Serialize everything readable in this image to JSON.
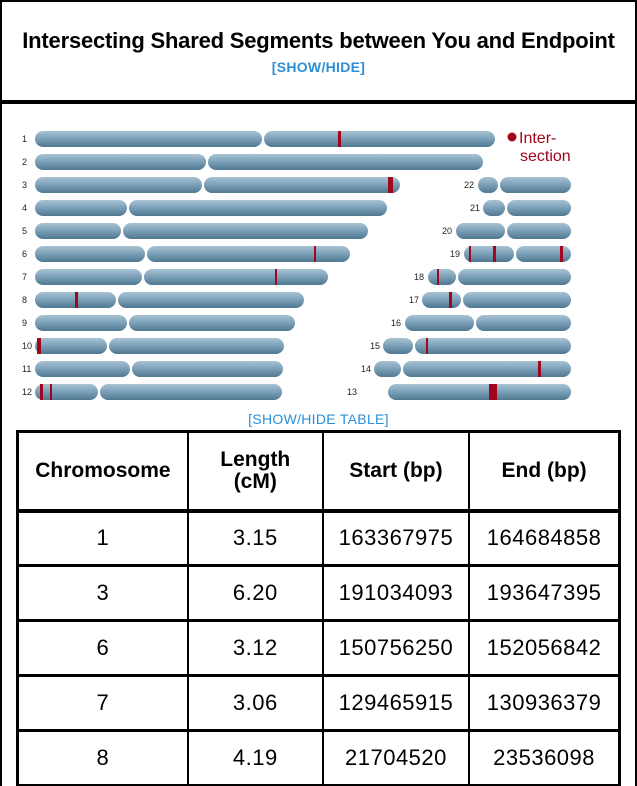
{
  "header": {
    "title": "Intersecting Shared Segments between You and Endpoint",
    "show_hide_label": "[SHOW/HIDE]"
  },
  "colors": {
    "chromosome": "#6f95ad",
    "segment": "#a0061c",
    "link": "#2a8fd8"
  },
  "ideogram": {
    "legend_label": "Inter-\nsection",
    "chromosomes": [
      {
        "label": "1"
      },
      {
        "label": "2"
      },
      {
        "label": "3"
      },
      {
        "label": "4"
      },
      {
        "label": "5"
      },
      {
        "label": "6"
      },
      {
        "label": "7"
      },
      {
        "label": "8"
      },
      {
        "label": "9"
      },
      {
        "label": "10"
      },
      {
        "label": "11"
      },
      {
        "label": "12"
      },
      {
        "label": "13"
      },
      {
        "label": "14"
      },
      {
        "label": "15"
      },
      {
        "label": "16"
      },
      {
        "label": "17"
      },
      {
        "label": "18"
      },
      {
        "label": "19"
      },
      {
        "label": "20"
      },
      {
        "label": "21"
      },
      {
        "label": "22"
      }
    ]
  },
  "table": {
    "toggle_label": "[SHOW/HIDE TABLE]",
    "headers": [
      "Chromosome",
      "Length (cM)",
      "Start (bp)",
      "End (bp)"
    ],
    "rows": [
      [
        "1",
        "3.15",
        "163367975",
        "164684858"
      ],
      [
        "3",
        "6.20",
        "191034093",
        "193647395"
      ],
      [
        "6",
        "3.12",
        "150756250",
        "152056842"
      ],
      [
        "7",
        "3.06",
        "129465915",
        "130936379"
      ],
      [
        "8",
        "4.19",
        "21704520",
        "23536098"
      ]
    ]
  }
}
